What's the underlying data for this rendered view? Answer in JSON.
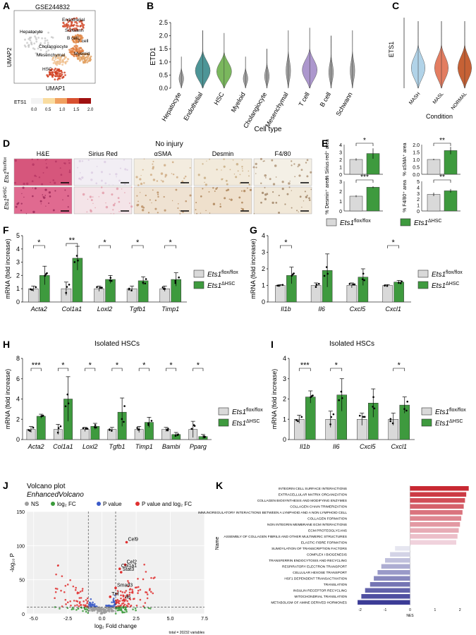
{
  "figure": {
    "panel_labels": [
      "A",
      "B",
      "C",
      "D",
      "E",
      "F",
      "G",
      "H",
      "I",
      "J",
      "K"
    ]
  },
  "A": {
    "title": "GSE244832",
    "ylabel": "UMAP2",
    "xlabel": "UMAP1",
    "colorbar_label": "ETS1",
    "colorbar_ticks": [
      "0.0",
      "0.5",
      "1.0",
      "1.5",
      "2.0"
    ],
    "cell_labels": [
      "Hepatocyte",
      "Endothelial",
      "Schwann",
      "B cell",
      "T cell",
      "Cholangiocyte",
      "Mesenchymal",
      "Myeloid",
      "HSC"
    ]
  },
  "B": {
    "ylabel": "ETD1",
    "xlabel": "Cell type",
    "yticks": [
      "0.0",
      "0.5",
      "1.0",
      "1.5",
      "2.0",
      "2.5"
    ],
    "chart_data": {
      "type": "violin",
      "categories": [
        "Hepatocyte",
        "Endothelial",
        "HSC",
        "Myeloid",
        "Cholangiocyte",
        "Mesenchymal",
        "T cell",
        "B cell",
        "Schwann"
      ],
      "max_values": [
        1.2,
        2.2,
        2.1,
        1.2,
        1.5,
        2.2,
        2.3,
        2.0,
        2.2
      ],
      "colors": [
        "#999999",
        "#3a8a8c",
        "#6cb04c",
        "#999999",
        "#999999",
        "#999999",
        "#a48cc8",
        "#999999",
        "#999999"
      ],
      "ylim": [
        0,
        2.5
      ]
    }
  },
  "C": {
    "ylabel": "ETS1",
    "xlabel": "Condition",
    "chart_data": {
      "type": "violin",
      "categories": [
        "MASH",
        "MASL",
        "NORMAL"
      ],
      "colors": [
        "#a9cfe6",
        "#e07050",
        "#c05020"
      ]
    }
  },
  "D": {
    "title": "No injury",
    "columns": [
      "H&E",
      "Sirius Red",
      "αSMA",
      "Desmin",
      "F4/80"
    ],
    "row1_base": "Ets1",
    "row1_sup": "flox/flox",
    "row2_base": "Ets1",
    "row2_sup": "ΔHSC"
  },
  "E": {
    "legend": {
      "ctrl_base": "Ets1",
      "ctrl_sup": "flox/flox",
      "ko_base": "Ets1",
      "ko_sup": "ΔHSC"
    },
    "chart_data": [
      {
        "type": "bar",
        "ylabel": "% Sirius red⁺ area",
        "yticks": [
          "0",
          "1",
          "2",
          "3",
          "4"
        ],
        "ylim": [
          0,
          4
        ],
        "values": [
          2.0,
          2.8
        ],
        "errors": [
          0.15,
          0.7
        ],
        "sig": "*"
      },
      {
        "type": "bar",
        "ylabel": "% αSMA⁺ area",
        "yticks": [
          "0.0",
          "0.5",
          "1.0",
          "1.5",
          "2.0"
        ],
        "ylim": [
          0,
          2
        ],
        "values": [
          1.0,
          1.6
        ],
        "errors": [
          0.05,
          0.25
        ],
        "sig": "**"
      },
      {
        "type": "bar",
        "ylabel": "% Desmin⁺ area",
        "yticks": [
          "0",
          "1",
          "2",
          "3"
        ],
        "ylim": [
          0,
          3
        ],
        "values": [
          1.5,
          2.4
        ],
        "errors": [
          0.1,
          0.1
        ],
        "sig": "***"
      },
      {
        "type": "bar",
        "ylabel": "% F4/80⁺ area",
        "yticks": [
          "0",
          "1",
          "2",
          "3",
          "4",
          "5"
        ],
        "ylim": [
          0,
          5
        ],
        "values": [
          2.8,
          3.4
        ],
        "errors": [
          0.3,
          0.3
        ],
        "sig": "**"
      }
    ]
  },
  "F": {
    "ylabel": "mRNA (fold increase)",
    "yticks": [
      "0",
      "1",
      "2",
      "3",
      "4",
      "5"
    ],
    "legend": {
      "ctrl_base": "Ets1",
      "ctrl_sup": "flox/flox",
      "ko_base": "Ets1",
      "ko_sup": "ΔHSC"
    },
    "chart_data": {
      "type": "bar",
      "categories": [
        "Acta2",
        "Col1a1",
        "Loxl2",
        "Tgfb1",
        "Timp1"
      ],
      "series": [
        {
          "name": "Ets1 flox/flox",
          "values": [
            1.0,
            1.0,
            1.0,
            1.0,
            1.0
          ],
          "errors": [
            0.2,
            0.5,
            0.2,
            0.2,
            0.2
          ]
        },
        {
          "name": "Ets1 ΔHSC",
          "values": [
            2.0,
            3.3,
            1.7,
            1.6,
            1.7
          ],
          "errors": [
            0.7,
            0.9,
            0.3,
            0.3,
            0.5
          ]
        }
      ],
      "sig": [
        "*",
        "**",
        "*",
        "*",
        "*"
      ],
      "ylim": [
        0,
        5
      ]
    }
  },
  "G": {
    "ylabel": "mRNA (fold increase)",
    "yticks": [
      "0",
      "1",
      "2",
      "3",
      "4"
    ],
    "legend": {
      "ctrl_base": "Ets1",
      "ctrl_sup": "flox/flox",
      "ko_base": "Ets1",
      "ko_sup": "ΔHSC"
    },
    "chart_data": {
      "type": "bar",
      "categories": [
        "Il1b",
        "Il6",
        "Cxcl5",
        "Cxcl1"
      ],
      "series": [
        {
          "name": "Ets1 flox/flox",
          "values": [
            1.0,
            1.0,
            1.0,
            1.0
          ],
          "errors": [
            0.05,
            0.15,
            0.15,
            0.05
          ]
        },
        {
          "name": "Ets1 ΔHSC",
          "values": [
            1.6,
            1.9,
            1.5,
            1.2
          ],
          "errors": [
            0.5,
            1.0,
            0.5,
            0.1
          ]
        }
      ],
      "sig": [
        "*",
        "",
        "",
        "*"
      ],
      "ylim": [
        0,
        4
      ]
    }
  },
  "H": {
    "title": "Isolated HSCs",
    "ylabel": "mRNA (fold increase)",
    "yticks": [
      "0",
      "2",
      "4",
      "6",
      "8"
    ],
    "legend": {
      "ctrl_base": "Ets1",
      "ctrl_sup": "flox/flox",
      "ko_base": "Ets1",
      "ko_sup": "ΔHSC"
    },
    "chart_data": {
      "type": "bar",
      "categories": [
        "Acta2",
        "Col1a1",
        "Loxl2",
        "Tgfb1",
        "Timp1",
        "Bambi",
        "Pparg"
      ],
      "series": [
        {
          "name": "Ets1 flox/flox",
          "values": [
            1.0,
            1.0,
            1.0,
            1.0,
            1.0,
            1.0,
            1.0
          ],
          "errors": [
            0.3,
            0.5,
            0.2,
            0.2,
            0.3,
            0.2,
            0.8
          ]
        },
        {
          "name": "Ets1 ΔHSC",
          "values": [
            2.3,
            4.0,
            1.3,
            2.7,
            1.7,
            0.5,
            0.3
          ],
          "errors": [
            0.2,
            2.2,
            0.3,
            1.4,
            0.5,
            0.2,
            0.2
          ]
        }
      ],
      "sig": [
        "***",
        "*",
        "*",
        "*",
        "*",
        "*",
        "*"
      ],
      "ylim": [
        0,
        8
      ]
    }
  },
  "I": {
    "title": "Isolated HSCs",
    "ylabel": "mRNA (fold increase)",
    "yticks": [
      "0",
      "1",
      "2",
      "3",
      "4"
    ],
    "legend": {
      "ctrl_base": "Ets1",
      "ctrl_sup": "flox/flox",
      "ko_base": "Ets1",
      "ko_sup": "ΔHSC"
    },
    "chart_data": {
      "type": "bar",
      "categories": [
        "Il1b",
        "Il6",
        "Cxcl5",
        "Cxcl1"
      ],
      "series": [
        {
          "name": "Ets1 flox/flox",
          "values": [
            1.0,
            1.0,
            1.0,
            1.0
          ],
          "errors": [
            0.2,
            0.4,
            0.3,
            0.3
          ]
        },
        {
          "name": "Ets1 ΔHSC",
          "values": [
            2.1,
            2.2,
            1.8,
            1.7
          ],
          "errors": [
            0.3,
            0.8,
            0.7,
            0.4
          ]
        }
      ],
      "sig": [
        "***",
        "*",
        "",
        "*"
      ],
      "ylim": [
        0,
        4
      ]
    }
  },
  "J": {
    "title": "Volcano plot",
    "subtitle": "EnhancedVolcano",
    "legend": [
      "NS",
      "log₂ FC",
      "P value",
      "P value and log₂ FC"
    ],
    "legend_colors": [
      "#9e9e9e",
      "#3a9a3a",
      "#3a5ac8",
      "#e03030"
    ],
    "xlabel": "log₂ Fold change",
    "ylabel": "-log₁₀ P",
    "xticks": [
      "-5.0",
      "-2.5",
      "0.0",
      "2.5",
      "5.0",
      "7.5"
    ],
    "yticks": [
      "0",
      "50",
      "100",
      "150"
    ],
    "footer": "total = 20232 variables",
    "gene_labels": [
      "Cel9",
      "Cel2",
      "Col1a1",
      "Stat3",
      "Smad3",
      "Tnf",
      "Il6"
    ],
    "chart_data": {
      "type": "scatter",
      "xlim": [
        -5.5,
        7.5
      ],
      "ylim": [
        0,
        150
      ],
      "fc_cutoff": 1,
      "p_cutoff_y": 10
    }
  },
  "K": {
    "ylabel": "Name",
    "xlabel": "NES",
    "xticks": [
      "-2",
      "-1",
      "0",
      "1",
      "2"
    ],
    "chart_data": {
      "type": "bar",
      "orientation": "horizontal",
      "categories": [
        "INTEGRIN CELL SURFACE INTERACTIONS",
        "EXTRACELLULAR MATRIX ORGANIZATION",
        "COLLAGEN BIOSYNTHESIS AND MODIFYING ENZYMES",
        "COLLAGEN CHAIN TRIMERIZATION",
        "IMMUNOREGULATORY INTERACTIONS BETWEEN A LYMPHOID AND A NON LYMPHOID CELL",
        "COLLAGEN FORMATION",
        "NON INTEGRIN MEMBRANE ECM INTERACTIONS",
        "ECM PROTEOGLYCANS",
        "ASSEMBLY OF COLLAGEN FIBRILS AND OTHER MULTIMERIC STRUCTURES",
        "ELASTIC FIBRE FORMATION",
        "SUMOYLATION OF TRANSCRIPTION FACTORS",
        "COMPLEX I BIOGENESIS",
        "TRANSFERRIN ENDOCYTOSIS AND RECYCLING",
        "RESPIRATORY ELECTRON TRANSPORT",
        "CELLULAR HEXOSE TRANSPORT",
        "HSF1 DEPENDENT TRANSACTIVATION",
        "TRANSLATION",
        "INSULIN RECEPTOR RECYCLING",
        "MITOCHONDRIAL TRANSLATION",
        "METABOLISM OF AMINE DERIVED HORMONES"
      ],
      "values": [
        2.35,
        2.25,
        2.2,
        2.15,
        2.1,
        2.05,
        2.0,
        1.95,
        1.9,
        1.85,
        -0.6,
        -0.8,
        -1.0,
        -1.15,
        -1.3,
        -1.45,
        -1.6,
        -1.8,
        -1.95,
        -2.1
      ],
      "xlim": [
        -2.3,
        2.5
      ]
    }
  }
}
